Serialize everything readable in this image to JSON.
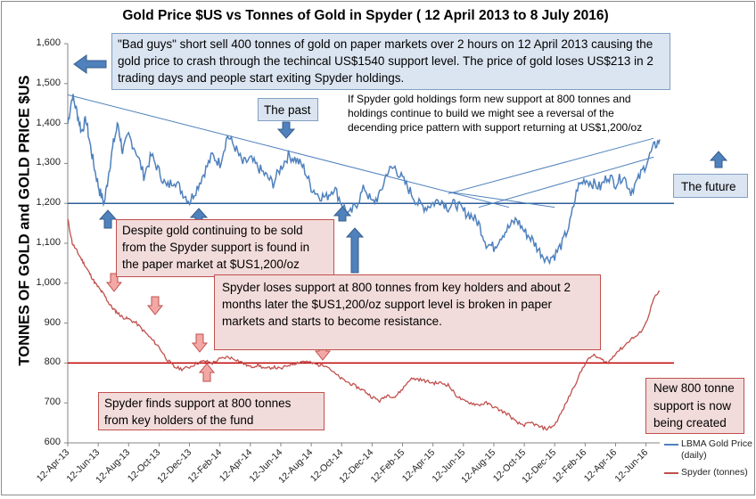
{
  "title": "Gold Price $US vs Tonnes of Gold in Spyder ( 12 April 2013 to  8 July 2016)",
  "colors": {
    "gold_line": "#4f81bd",
    "spyder_line": "#c0504d",
    "trend_line": "#4f81bd",
    "support_line": "#c00000"
  },
  "chart_data": {
    "type": "line",
    "title": "Gold Price $US vs Tonnes of Gold in Spyder ( 12 April 2013 to  8 July 2016)",
    "ylabel": "TONNES OF GOLD   and  GOLD PRICE $US",
    "xlabel": "",
    "ylim": [
      600,
      1600
    ],
    "yticks": [
      "1,600",
      "1,500",
      "1,400",
      "1,300",
      "1,200",
      "1,100",
      "1,000",
      "900",
      "800",
      "700",
      "600"
    ],
    "ytick_values": [
      1600,
      1500,
      1400,
      1300,
      1200,
      1100,
      1000,
      900,
      800,
      700,
      600
    ],
    "xticks": [
      "12-Apr-13",
      "12-Jun-13",
      "12-Aug-13",
      "12-Oct-13",
      "12-Dec-13",
      "12-Feb-14",
      "12-Apr-14",
      "12-Jun-14",
      "12-Aug-14",
      "12-Oct-14",
      "12-Dec-14",
      "12-Feb-15",
      "12-Apr-15",
      "12-Jun-15",
      "12-Aug-15",
      "12-Oct-15",
      "12-Dec-15",
      "12-Feb-16",
      "12-Apr-16",
      "12-Jun-16"
    ],
    "x_months": [
      0,
      2,
      4,
      6,
      8,
      10,
      12,
      14,
      16,
      18,
      20,
      22,
      24,
      26,
      28,
      30,
      32,
      34,
      36,
      38
    ],
    "x_max_months": 38.9,
    "grid": false,
    "legend": "bottom-right",
    "series": [
      {
        "name": "LBMA Gold Price (daily)",
        "x_months": [
          0,
          0.3,
          0.6,
          0.9,
          1.2,
          1.5,
          1.8,
          2.1,
          2.4,
          2.7,
          3.0,
          3.3,
          3.6,
          4.0,
          4.5,
          5.0,
          5.5,
          6.0,
          6.5,
          7.0,
          7.5,
          8.0,
          8.5,
          9.0,
          9.5,
          10.0,
          10.5,
          11.0,
          11.5,
          12.0,
          12.5,
          13.0,
          13.5,
          14.0,
          14.5,
          15.0,
          15.5,
          16.0,
          16.5,
          17.0,
          17.5,
          18.0,
          18.5,
          19.0,
          19.5,
          20.0,
          20.5,
          21.0,
          21.5,
          22.0,
          22.5,
          23.0,
          23.5,
          24.0,
          24.5,
          25.0,
          25.5,
          26.0,
          26.5,
          27.0,
          27.5,
          28.0,
          28.5,
          29.0,
          29.5,
          30.0,
          30.5,
          31.0,
          31.5,
          32.0,
          32.5,
          33.0,
          33.5,
          34.0,
          34.5,
          35.0,
          35.5,
          36.0,
          36.5,
          37.0,
          37.5,
          38.0,
          38.5,
          38.9
        ],
        "values": [
          1400,
          1470,
          1430,
          1380,
          1410,
          1340,
          1280,
          1230,
          1200,
          1280,
          1350,
          1400,
          1330,
          1370,
          1330,
          1270,
          1320,
          1280,
          1240,
          1260,
          1230,
          1205,
          1240,
          1280,
          1320,
          1300,
          1370,
          1340,
          1300,
          1310,
          1290,
          1270,
          1250,
          1290,
          1320,
          1310,
          1290,
          1240,
          1220,
          1215,
          1240,
          1200,
          1170,
          1200,
          1240,
          1200,
          1220,
          1280,
          1290,
          1260,
          1230,
          1200,
          1190,
          1200,
          1210,
          1190,
          1200,
          1180,
          1170,
          1150,
          1100,
          1090,
          1120,
          1140,
          1160,
          1130,
          1110,
          1080,
          1060,
          1070,
          1100,
          1150,
          1240,
          1260,
          1250,
          1240,
          1270,
          1250,
          1270,
          1230,
          1260,
          1300,
          1340,
          1360
        ]
      },
      {
        "name": "Spyder  (tonnes)",
        "x_months": [
          0,
          0.3,
          0.6,
          0.9,
          1.2,
          1.5,
          1.8,
          2.1,
          2.4,
          2.7,
          3.0,
          3.3,
          3.6,
          4.0,
          4.5,
          5.0,
          5.5,
          6.0,
          6.5,
          7.0,
          7.5,
          8.0,
          8.5,
          9.0,
          9.5,
          10.0,
          10.5,
          11.0,
          11.5,
          12.0,
          12.5,
          13.0,
          13.5,
          14.0,
          14.5,
          15.0,
          15.5,
          16.0,
          16.5,
          17.0,
          17.5,
          18.0,
          18.5,
          19.0,
          19.5,
          20.0,
          20.5,
          21.0,
          21.5,
          22.0,
          22.5,
          23.0,
          23.5,
          24.0,
          24.5,
          25.0,
          25.5,
          26.0,
          26.5,
          27.0,
          27.5,
          28.0,
          28.5,
          29.0,
          29.5,
          30.0,
          30.5,
          31.0,
          31.5,
          32.0,
          32.5,
          33.0,
          33.5,
          34.0,
          34.5,
          35.0,
          35.5,
          36.0,
          36.5,
          37.0,
          37.5,
          38.0,
          38.5,
          38.9
        ],
        "values": [
          1160,
          1100,
          1080,
          1060,
          1040,
          1020,
          1000,
          985,
          970,
          950,
          935,
          925,
          915,
          910,
          900,
          880,
          860,
          840,
          810,
          790,
          785,
          790,
          800,
          805,
          800,
          810,
          815,
          810,
          800,
          790,
          795,
          785,
          790,
          785,
          795,
          800,
          805,
          800,
          795,
          795,
          775,
          760,
          750,
          740,
          730,
          715,
          705,
          720,
          715,
          735,
          760,
          760,
          755,
          750,
          750,
          745,
          720,
          705,
          700,
          695,
          700,
          690,
          680,
          670,
          650,
          645,
          650,
          640,
          635,
          645,
          680,
          720,
          760,
          800,
          820,
          810,
          800,
          825,
          840,
          860,
          870,
          900,
          960,
          980
        ]
      }
    ],
    "overlays": {
      "support_800": 800,
      "support_1200": 1200,
      "trend_line": [
        [
          0,
          1472
        ],
        [
          29,
          1190
        ]
      ],
      "rising_lines": [
        [
          [
            25,
            1224
          ],
          [
            38.5,
            1363
          ]
        ],
        [
          [
            27,
            1190
          ],
          [
            38.5,
            1316
          ]
        ],
        [
          [
            25,
            1229
          ],
          [
            32,
            1190
          ]
        ]
      ]
    }
  },
  "annotations": {
    "bad_guys": "\"Bad guys\" short sell 400 tonnes of gold on paper markets over 2 hours on 12 April 2013 causing the gold price to crash through  the techincal US$1540  support  level. The price of gold loses US$213  in 2 trading days and people start exiting Spyder  holdings.",
    "the_past": "The past",
    "spyder_hope": "If Spyder gold holdings  form new support  at 800 tonnes and holdings continue to build  we might see a reversal of the decending price pattern with support returning at US$1,200/oz",
    "the_future": "The future",
    "despite": "Despite gold continuing to be sold from the Spyder support is found in the paper market  at $US1,200/oz",
    "spyder_loses": "Spyder loses support at 800 tonnes from key holders and about 2 months later the $US1,200/oz  support  level is broken in paper markets and starts to become resistance.",
    "spyder_finds": "Spyder  finds support at 800 tonnes  from  key holders of the fund",
    "new_800": "New 800 tonne support  is now being created"
  },
  "legend": {
    "gold": "LBMA Gold Price (daily)",
    "spyder": "Spyder  (tonnes)"
  }
}
